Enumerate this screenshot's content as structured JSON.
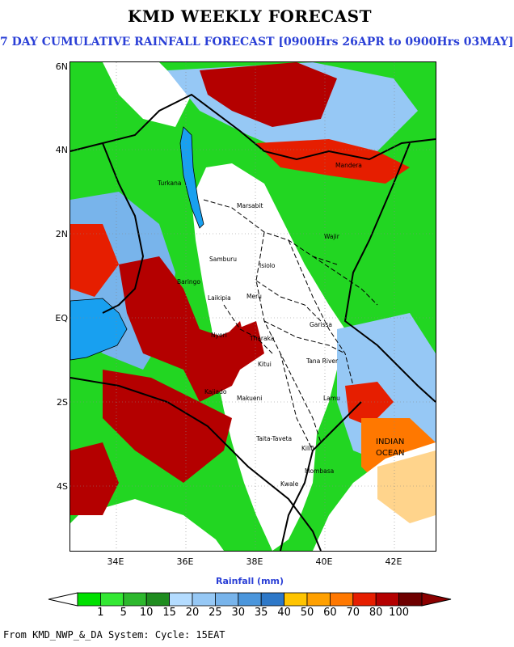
{
  "title": "KMD WEEKLY FORECAST",
  "subtitle": "7 DAY CUMULATIVE RAINFALL FORECAST [0900Hrs 26APR to 0900Hrs 03MAY]",
  "map": {
    "lat_ticks": [
      "6N",
      "4N",
      "2N",
      "EQ",
      "2S",
      "4S"
    ],
    "lon_ticks": [
      "34E",
      "36E",
      "38E",
      "40E",
      "42E"
    ],
    "places": [
      "Turkana",
      "Marsabit",
      "Mandera",
      "Wajir",
      "Samburu",
      "Isiolo",
      "Garissa",
      "Tana River",
      "Kitui",
      "Makueni",
      "Lamu",
      "Taita-Taveta",
      "Kilifi",
      "Mombasa",
      "Kwale",
      "Meru",
      "Tharaka",
      "Kajiado",
      "Laikipia",
      "Baringo",
      "Nyeri"
    ],
    "ocean_label_line1": "INDIAN",
    "ocean_label_line2": "OCEAN"
  },
  "colorbar": {
    "title": "Rainfall (mm)",
    "levels": [
      "1",
      "5",
      "10",
      "15",
      "20",
      "25",
      "30",
      "35",
      "40",
      "50",
      "60",
      "70",
      "80",
      "100"
    ],
    "colors": [
      "#00e000",
      "#33e833",
      "#2db82d",
      "#1f8c1f",
      "#b4dcff",
      "#96c8f5",
      "#78b4eb",
      "#4b96dc",
      "#2d78c8",
      "#ffc400",
      "#ffa000",
      "#ff7800",
      "#e61e00",
      "#b40000",
      "#6e0000"
    ],
    "lower_arrow_color": "#ffffff",
    "upper_arrow_color": "#8b0000"
  },
  "footer": "From KMD_NWP_&_DA System: Cycle: 15EAT"
}
